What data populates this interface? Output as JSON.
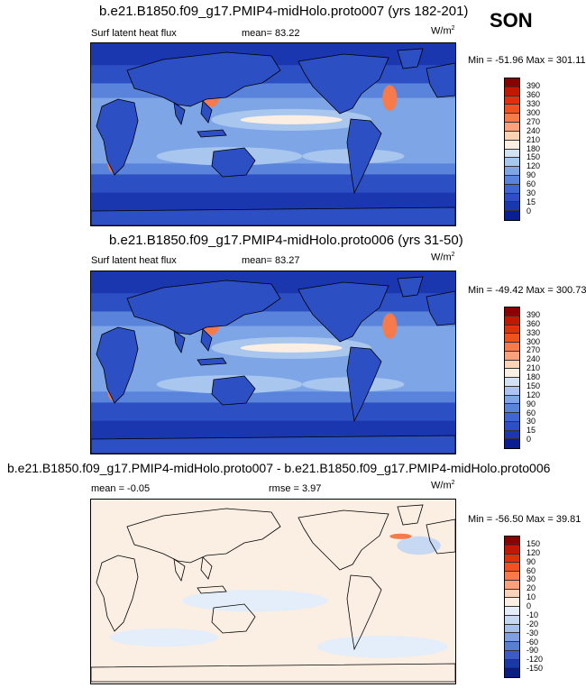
{
  "season": "SON",
  "panels": [
    {
      "title": "b.e21.B1850.f09_g17.PMIP4-midHolo.proto007 (yrs 182-201)",
      "left_label": "Surf latent heat flux",
      "center_label": "mean=  83.22",
      "units": "W/m",
      "units_sup": "2",
      "minmax": "Min = -51.96 Max = 301.11",
      "levels": [
        "390",
        "360",
        "330",
        "300",
        "270",
        "240",
        "210",
        "180",
        "150",
        "120",
        "90",
        "60",
        "30",
        "15",
        "0"
      ],
      "colors": [
        "#8b0000",
        "#c21800",
        "#e03010",
        "#f2501e",
        "#f77a4a",
        "#fba27c",
        "#fdd3b8",
        "#fbeee2",
        "#d2e2f4",
        "#a9c6ee",
        "#7ea6e6",
        "#5a84dc",
        "#3f66d2",
        "#2c4fc4",
        "#1a37b0",
        "#0a1d92"
      ]
    },
    {
      "title": "b.e21.B1850.f09_g17.PMIP4-midHolo.proto006 (yrs 31-50)",
      "left_label": "Surf latent heat flux",
      "center_label": "mean=  83.27",
      "units": "W/m",
      "units_sup": "2",
      "minmax": "Min = -49.42 Max = 300.73",
      "levels": [
        "390",
        "360",
        "330",
        "300",
        "270",
        "240",
        "210",
        "180",
        "150",
        "120",
        "90",
        "60",
        "30",
        "15",
        "0"
      ],
      "colors": [
        "#8b0000",
        "#c21800",
        "#e03010",
        "#f2501e",
        "#f77a4a",
        "#fba27c",
        "#fdd3b8",
        "#fbeee2",
        "#d2e2f4",
        "#a9c6ee",
        "#7ea6e6",
        "#5a84dc",
        "#3f66d2",
        "#2c4fc4",
        "#1a37b0",
        "#0a1d92"
      ]
    },
    {
      "title": "b.e21.B1850.f09_g17.PMIP4-midHolo.proto007 - b.e21.B1850.f09_g17.PMIP4-midHolo.proto006",
      "left_label": "mean =  -0.05",
      "center_label": "rmse =   3.97",
      "units": "W/m",
      "units_sup": "2",
      "minmax": "Min = -56.50 Max =  39.81",
      "levels": [
        "150",
        "120",
        "90",
        "60",
        "30",
        "20",
        "10",
        "0",
        "-10",
        "-20",
        "-30",
        "-60",
        "-90",
        "-120",
        "-150"
      ],
      "colors": [
        "#8b0000",
        "#c21800",
        "#e03010",
        "#f2501e",
        "#f77a4a",
        "#fba27c",
        "#fdd3b8",
        "#fbeee2",
        "#e4eefa",
        "#c6d8f2",
        "#a6c0ec",
        "#7ea0e0",
        "#5a7ed4",
        "#3a5cc4",
        "#1c38a8",
        "#0a1d80"
      ]
    }
  ]
}
